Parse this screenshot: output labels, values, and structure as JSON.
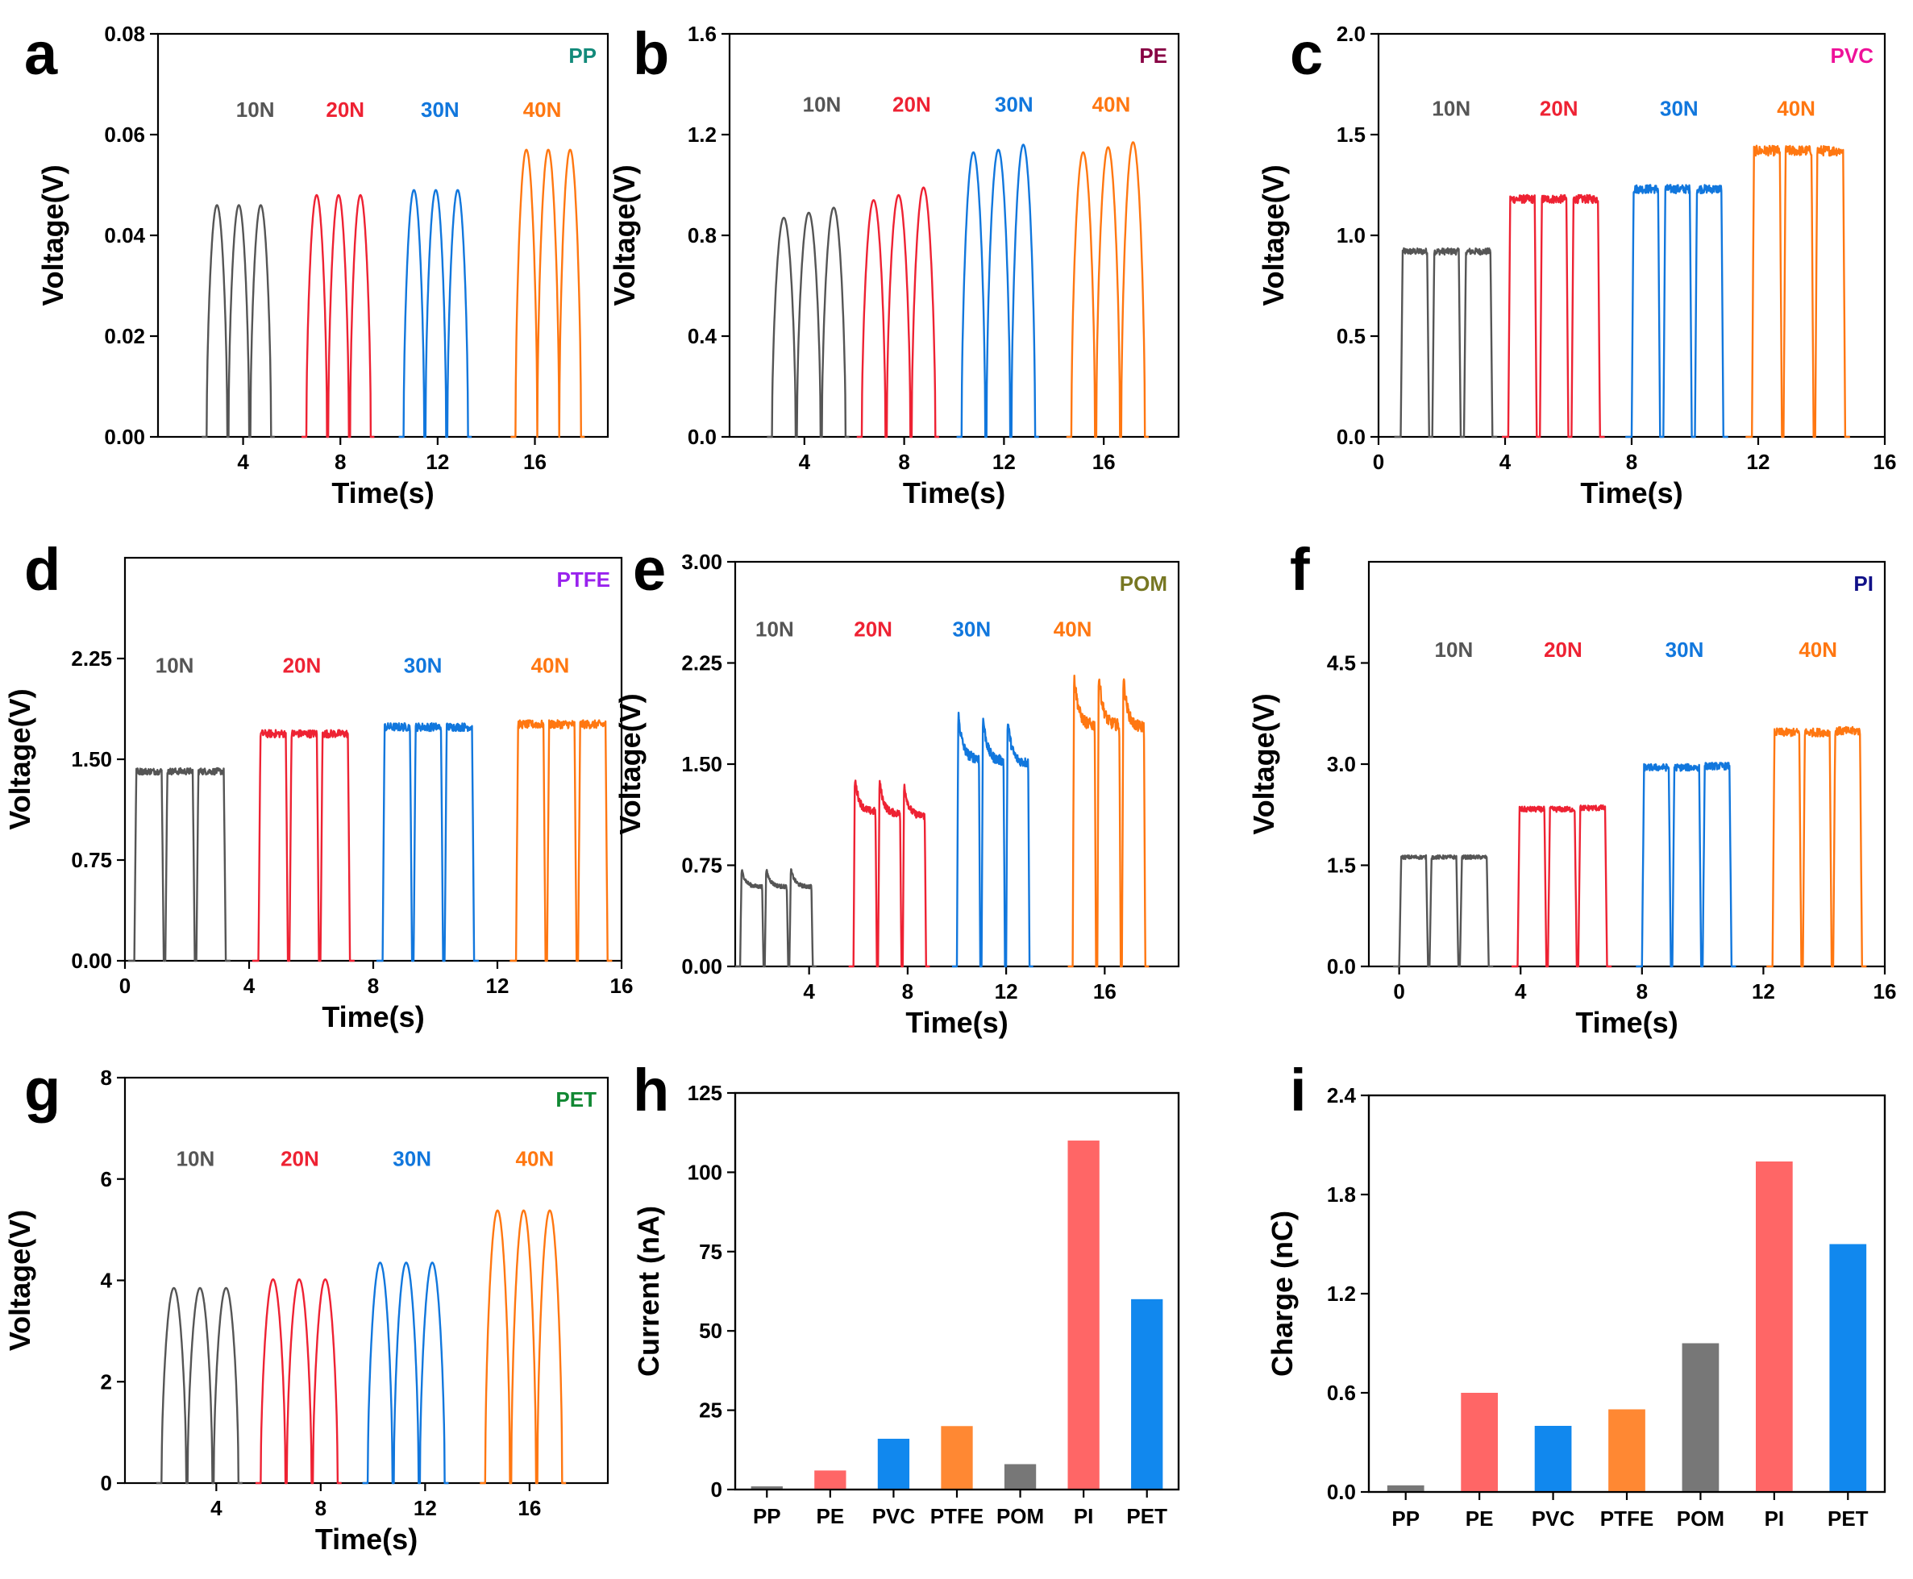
{
  "figure": {
    "description_none": ""
  },
  "colors": {
    "10N": "#555555",
    "20N": "#ee2233",
    "30N": "#1177dd",
    "40N": "#ff7711"
  },
  "chart_data": [
    {
      "panel": "a",
      "type": "line",
      "material": "PP",
      "material_color": "#128a7a",
      "xlabel": "Time(s)",
      "ylabel": "Voltage(V)",
      "xlim": [
        0.5,
        19.0
      ],
      "ylim": [
        0,
        0.08
      ],
      "xticks": [
        4,
        8,
        12,
        16
      ],
      "xtick_labels": [
        "4",
        "8",
        "12",
        "16"
      ],
      "yticks": [
        0,
        0.02,
        0.04,
        0.06,
        0.08
      ],
      "ytick_labels": [
        "0.00",
        "0.02",
        "0.04",
        "0.06",
        "0.08"
      ],
      "shape": "dome",
      "series": [
        {
          "name": "10N",
          "label": "10N",
          "label_pos": [
            4.5,
            0.065
          ],
          "pulse_starts": [
            2.5,
            3.4,
            4.3
          ],
          "pulse_width": 0.85,
          "peaks": [
            0.046,
            0.046,
            0.046
          ]
        },
        {
          "name": "20N",
          "label": "20N",
          "label_pos": [
            8.2,
            0.065
          ],
          "pulse_starts": [
            6.6,
            7.5,
            8.4
          ],
          "pulse_width": 0.85,
          "peaks": [
            0.048,
            0.048,
            0.048
          ]
        },
        {
          "name": "30N",
          "label": "30N",
          "label_pos": [
            12.1,
            0.065
          ],
          "pulse_starts": [
            10.6,
            11.5,
            12.4
          ],
          "pulse_width": 0.85,
          "peaks": [
            0.049,
            0.049,
            0.049
          ]
        },
        {
          "name": "40N",
          "label": "40N",
          "label_pos": [
            16.3,
            0.065
          ],
          "pulse_starts": [
            15.2,
            16.1,
            17.0
          ],
          "pulse_width": 0.9,
          "peaks": [
            0.057,
            0.057,
            0.057
          ]
        }
      ]
    },
    {
      "panel": "b",
      "type": "line",
      "material": "PE",
      "material_color": "#880044",
      "xlabel": "Time(s)",
      "ylabel": "Voltage(V)",
      "xlim": [
        1.0,
        19.0
      ],
      "ylim": [
        0,
        1.6
      ],
      "xticks": [
        4,
        8,
        12,
        16
      ],
      "xtick_labels": [
        "4",
        "8",
        "12",
        "16"
      ],
      "yticks": [
        0,
        0.4,
        0.8,
        1.2,
        1.6
      ],
      "ytick_labels": [
        "0.0",
        "0.4",
        "0.8",
        "1.2",
        "1.6"
      ],
      "shape": "dome",
      "series": [
        {
          "name": "10N",
          "label": "10N",
          "label_pos": [
            4.7,
            1.32
          ],
          "pulse_starts": [
            2.7,
            3.7,
            4.7
          ],
          "pulse_width": 0.95,
          "peaks": [
            0.87,
            0.89,
            0.91
          ]
        },
        {
          "name": "20N",
          "label": "20N",
          "label_pos": [
            8.3,
            1.32
          ],
          "pulse_starts": [
            6.3,
            7.3,
            8.3
          ],
          "pulse_width": 0.95,
          "peaks": [
            0.94,
            0.96,
            0.99
          ]
        },
        {
          "name": "30N",
          "label": "30N",
          "label_pos": [
            12.4,
            1.32
          ],
          "pulse_starts": [
            10.3,
            11.3,
            12.3
          ],
          "pulse_width": 0.95,
          "peaks": [
            1.13,
            1.14,
            1.16
          ]
        },
        {
          "name": "40N",
          "label": "40N",
          "label_pos": [
            16.3,
            1.32
          ],
          "pulse_starts": [
            14.7,
            15.7,
            16.7
          ],
          "pulse_width": 0.95,
          "peaks": [
            1.13,
            1.15,
            1.17
          ]
        }
      ]
    },
    {
      "panel": "c",
      "type": "line",
      "material": "PVC",
      "material_color": "#ee1199",
      "xlabel": "Time(s)",
      "ylabel": "Voltage(V)",
      "xlim": [
        0,
        16
      ],
      "ylim": [
        0,
        2.0
      ],
      "xticks": [
        0,
        4,
        8,
        12,
        16
      ],
      "xtick_labels": [
        "0",
        "4",
        "8",
        "12",
        "16"
      ],
      "yticks": [
        0,
        0.5,
        1.0,
        1.5,
        2.0
      ],
      "ytick_labels": [
        "0.0",
        "0.5",
        "1.0",
        "1.5",
        "2.0"
      ],
      "shape": "plateau",
      "series": [
        {
          "name": "10N",
          "label": "10N",
          "label_pos": [
            2.3,
            1.63
          ],
          "pulse_starts": [
            0.7,
            1.7,
            2.7
          ],
          "pulse_width": 0.9,
          "peaks": [
            0.92,
            0.92,
            0.92
          ]
        },
        {
          "name": "20N",
          "label": "20N",
          "label_pos": [
            5.7,
            1.63
          ],
          "pulse_starts": [
            4.1,
            5.1,
            6.1
          ],
          "pulse_width": 0.9,
          "peaks": [
            1.18,
            1.18,
            1.18
          ]
        },
        {
          "name": "30N",
          "label": "30N",
          "label_pos": [
            9.5,
            1.63
          ],
          "pulse_starts": [
            8.0,
            9.0,
            10.0
          ],
          "pulse_width": 0.9,
          "peaks": [
            1.23,
            1.23,
            1.23
          ]
        },
        {
          "name": "40N",
          "label": "40N",
          "label_pos": [
            13.2,
            1.63
          ],
          "pulse_starts": [
            11.8,
            12.8,
            13.8
          ],
          "pulse_width": 0.95,
          "peaks": [
            1.42,
            1.42,
            1.42
          ]
        }
      ]
    },
    {
      "panel": "d",
      "type": "line",
      "material": "PTFE",
      "material_color": "#9922ee",
      "xlabel": "Time(s)",
      "ylabel": "Voltage(V)",
      "xlim": [
        0,
        16
      ],
      "ylim": [
        0,
        3.0
      ],
      "xticks": [
        0,
        4,
        8,
        12,
        16
      ],
      "xtick_labels": [
        "0",
        "4",
        "8",
        "12",
        "16"
      ],
      "yticks": [
        0,
        0.75,
        1.5,
        2.25
      ],
      "ytick_labels": [
        "0.00",
        "0.75",
        "1.50",
        "2.25"
      ],
      "shape": "plateau",
      "series": [
        {
          "name": "10N",
          "label": "10N",
          "label_pos": [
            1.6,
            2.2
          ],
          "pulse_starts": [
            0.3,
            1.3,
            2.3
          ],
          "pulse_width": 0.95,
          "peaks": [
            1.41,
            1.41,
            1.41
          ]
        },
        {
          "name": "20N",
          "label": "20N",
          "label_pos": [
            5.7,
            2.2
          ],
          "pulse_starts": [
            4.3,
            5.3,
            6.3
          ],
          "pulse_width": 0.95,
          "peaks": [
            1.69,
            1.69,
            1.69
          ]
        },
        {
          "name": "30N",
          "label": "30N",
          "label_pos": [
            9.6,
            2.2
          ],
          "pulse_starts": [
            8.3,
            9.3,
            10.3
          ],
          "pulse_width": 0.95,
          "peaks": [
            1.74,
            1.74,
            1.74
          ]
        },
        {
          "name": "40N",
          "label": "40N",
          "label_pos": [
            13.7,
            2.2
          ],
          "pulse_starts": [
            12.6,
            13.6,
            14.6
          ],
          "pulse_width": 0.95,
          "peaks": [
            1.76,
            1.76,
            1.76
          ]
        }
      ]
    },
    {
      "panel": "e",
      "type": "line",
      "material": "POM",
      "material_color": "#777722",
      "xlabel": "Time(s)",
      "ylabel": "Voltage(V)",
      "xlim": [
        1.0,
        19.0
      ],
      "ylim": [
        0,
        3.0
      ],
      "xticks": [
        4,
        8,
        12,
        16
      ],
      "xtick_labels": [
        "4",
        "8",
        "12",
        "16"
      ],
      "yticks": [
        0,
        0.75,
        1.5,
        2.25,
        3.0
      ],
      "ytick_labels": [
        "0.00",
        "0.75",
        "1.50",
        "2.25",
        "3.00"
      ],
      "shape": "decay",
      "series": [
        {
          "name": "10N",
          "label": "10N",
          "label_pos": [
            2.6,
            2.5
          ],
          "pulse_starts": [
            1.2,
            2.2,
            3.2
          ],
          "pulse_width": 0.95,
          "peaks": [
            0.72,
            0.72,
            0.72
          ]
        },
        {
          "name": "20N",
          "label": "20N",
          "label_pos": [
            6.6,
            2.5
          ],
          "pulse_starts": [
            5.8,
            6.8,
            7.8
          ],
          "pulse_width": 0.95,
          "peaks": [
            1.4,
            1.38,
            1.36
          ]
        },
        {
          "name": "30N",
          "label": "30N",
          "label_pos": [
            10.6,
            2.5
          ],
          "pulse_starts": [
            10.0,
            11.0,
            12.0
          ],
          "pulse_width": 0.95,
          "peaks": [
            1.88,
            1.86,
            1.84
          ]
        },
        {
          "name": "40N",
          "label": "40N",
          "label_pos": [
            14.7,
            2.5
          ],
          "pulse_starts": [
            14.7,
            15.7,
            16.7
          ],
          "pulse_width": 0.95,
          "peaks": [
            2.18,
            2.18,
            2.16
          ]
        }
      ]
    },
    {
      "panel": "f",
      "type": "line",
      "material": "PI",
      "material_color": "#111188",
      "xlabel": "Time(s)",
      "ylabel": "Voltage(V)",
      "xlim": [
        -1.0,
        16.0
      ],
      "ylim": [
        0,
        6.0
      ],
      "xticks": [
        0,
        4,
        8,
        12,
        16
      ],
      "xtick_labels": [
        "0",
        "4",
        "8",
        "12",
        "16"
      ],
      "yticks": [
        0,
        1.5,
        3.0,
        4.5
      ],
      "ytick_labels": [
        "0.0",
        "1.5",
        "3.0",
        "4.5"
      ],
      "shape": "plateau",
      "series": [
        {
          "name": "10N",
          "label": "10N",
          "label_pos": [
            1.8,
            4.7
          ],
          "pulse_starts": [
            0.0,
            1.0,
            2.0
          ],
          "pulse_width": 0.95,
          "peaks": [
            1.62,
            1.62,
            1.62
          ]
        },
        {
          "name": "20N",
          "label": "20N",
          "label_pos": [
            5.4,
            4.7
          ],
          "pulse_starts": [
            3.9,
            4.9,
            5.9
          ],
          "pulse_width": 0.95,
          "peaks": [
            2.33,
            2.33,
            2.35
          ]
        },
        {
          "name": "30N",
          "label": "30N",
          "label_pos": [
            9.4,
            4.7
          ],
          "pulse_starts": [
            8.0,
            9.0,
            10.0
          ],
          "pulse_width": 0.95,
          "peaks": [
            2.95,
            2.95,
            2.97
          ]
        },
        {
          "name": "40N",
          "label": "40N",
          "label_pos": [
            13.8,
            4.7
          ],
          "pulse_starts": [
            12.3,
            13.3,
            14.3
          ],
          "pulse_width": 0.95,
          "peaks": [
            3.47,
            3.47,
            3.49
          ]
        }
      ]
    },
    {
      "panel": "g",
      "type": "line",
      "material": "PET",
      "material_color": "#118833",
      "xlabel": "Time(s)",
      "ylabel": "Voltage(V)",
      "xlim": [
        0.5,
        19.0
      ],
      "ylim": [
        0,
        8
      ],
      "xticks": [
        4,
        8,
        12,
        16
      ],
      "xtick_labels": [
        "4",
        "8",
        "12",
        "16"
      ],
      "yticks": [
        0,
        2,
        4,
        6,
        8
      ],
      "ytick_labels": [
        "0",
        "2",
        "4",
        "6",
        "8"
      ],
      "shape": "dome",
      "series": [
        {
          "name": "10N",
          "label": "10N",
          "label_pos": [
            3.2,
            6.4
          ],
          "pulse_starts": [
            1.9,
            2.9,
            3.9
          ],
          "pulse_width": 0.95,
          "peaks": [
            3.85,
            3.85,
            3.85
          ]
        },
        {
          "name": "20N",
          "label": "20N",
          "label_pos": [
            7.2,
            6.4
          ],
          "pulse_starts": [
            5.7,
            6.7,
            7.7
          ],
          "pulse_width": 0.95,
          "peaks": [
            4.02,
            4.02,
            4.02
          ]
        },
        {
          "name": "30N",
          "label": "30N",
          "label_pos": [
            11.5,
            6.4
          ],
          "pulse_starts": [
            9.8,
            10.8,
            11.8
          ],
          "pulse_width": 0.95,
          "peaks": [
            4.35,
            4.35,
            4.35
          ]
        },
        {
          "name": "40N",
          "label": "40N",
          "label_pos": [
            16.2,
            6.4
          ],
          "pulse_starts": [
            14.3,
            15.3,
            16.3
          ],
          "pulse_width": 0.95,
          "peaks": [
            5.38,
            5.38,
            5.38
          ]
        }
      ]
    },
    {
      "panel": "h",
      "type": "bar",
      "xlabel": "",
      "ylabel": "Current (nA)",
      "ylim": [
        0,
        125
      ],
      "yticks": [
        0,
        25,
        50,
        75,
        100,
        125
      ],
      "ytick_labels": [
        "0",
        "25",
        "50",
        "75",
        "100",
        "125"
      ],
      "categories": [
        "PP",
        "PE",
        "PVC",
        "PTFE",
        "POM",
        "PI",
        "PET"
      ],
      "values": [
        1,
        6,
        16,
        20,
        8,
        110,
        60
      ],
      "bar_colors": [
        "#777777",
        "#ff6666",
        "#1188ee",
        "#ff8833",
        "#777777",
        "#ff6666",
        "#1188ee"
      ]
    },
    {
      "panel": "i",
      "type": "bar",
      "xlabel": "",
      "ylabel": "Charge (nC)",
      "ylim": [
        0,
        2.4
      ],
      "yticks": [
        0,
        0.6,
        1.2,
        1.8,
        2.4
      ],
      "ytick_labels": [
        "0.0",
        "0.6",
        "1.2",
        "1.8",
        "2.4"
      ],
      "categories": [
        "PP",
        "PE",
        "PVC",
        "PTFE",
        "POM",
        "PI",
        "PET"
      ],
      "values": [
        0.04,
        0.6,
        0.4,
        0.5,
        0.9,
        2.0,
        1.5
      ],
      "bar_colors": [
        "#777777",
        "#ff6666",
        "#1188ee",
        "#ff8833",
        "#777777",
        "#ff6666",
        "#1188ee"
      ]
    }
  ]
}
